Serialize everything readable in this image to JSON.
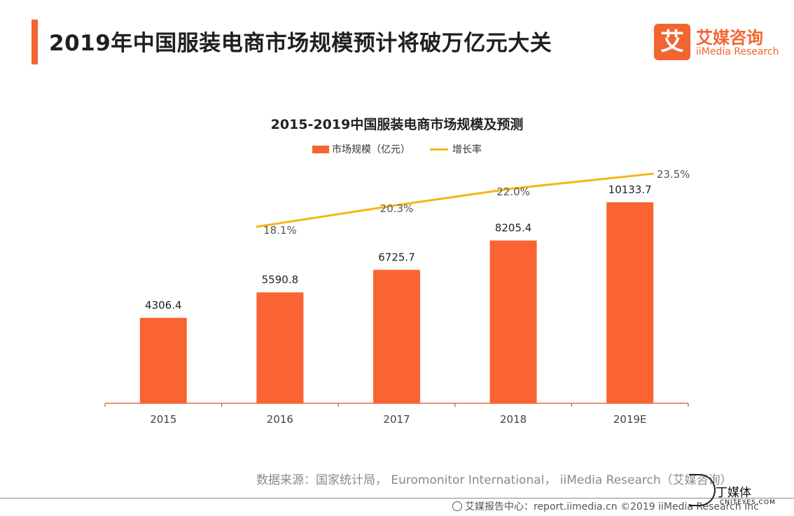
{
  "page": {
    "title": "2019年中国服装电商市场规模预计将破万亿元大关",
    "accent_color": "#f26430"
  },
  "logo": {
    "glyph": "艾",
    "name_cn": "艾媒咨询",
    "name_en": "iiMedia Research",
    "color": "#f26430"
  },
  "chart_data": {
    "type": "bar",
    "title": "2015-2019中国服装电商市场规模及预测",
    "categories": [
      "2015",
      "2016",
      "2017",
      "2018",
      "2019E"
    ],
    "series": [
      {
        "name": "市场规模（亿元）",
        "type": "bar",
        "color": "#f96432",
        "values": [
          4306.4,
          5590.8,
          6725.7,
          8205.4,
          10133.7
        ],
        "labels": [
          "4306.4",
          "5590.8",
          "6725.7",
          "8205.4",
          "10133.7"
        ]
      },
      {
        "name": "增长率",
        "type": "line",
        "color": "#f4b812",
        "values": [
          null,
          18.1,
          20.3,
          22.0,
          23.5
        ],
        "labels": [
          "",
          "18.1%",
          "20.3%",
          "22.0%",
          "23.5%"
        ]
      }
    ],
    "ylim": [
      0,
      10800
    ],
    "y2lim": [
      0,
      30
    ],
    "legend_position": "top-center",
    "grid": false,
    "axis_color": "#e0521f"
  },
  "source": "数据来源：国家统计局， Euromonitor International， iiMedia Research（艾媒咨询）",
  "footer": {
    "text": "艾媒报告中心：report.iimedia.cn ©2019 iiMedia Research Inc"
  },
  "watermark": {
    "text": "丁媒体",
    "sub": "CNITEYES.COM"
  }
}
